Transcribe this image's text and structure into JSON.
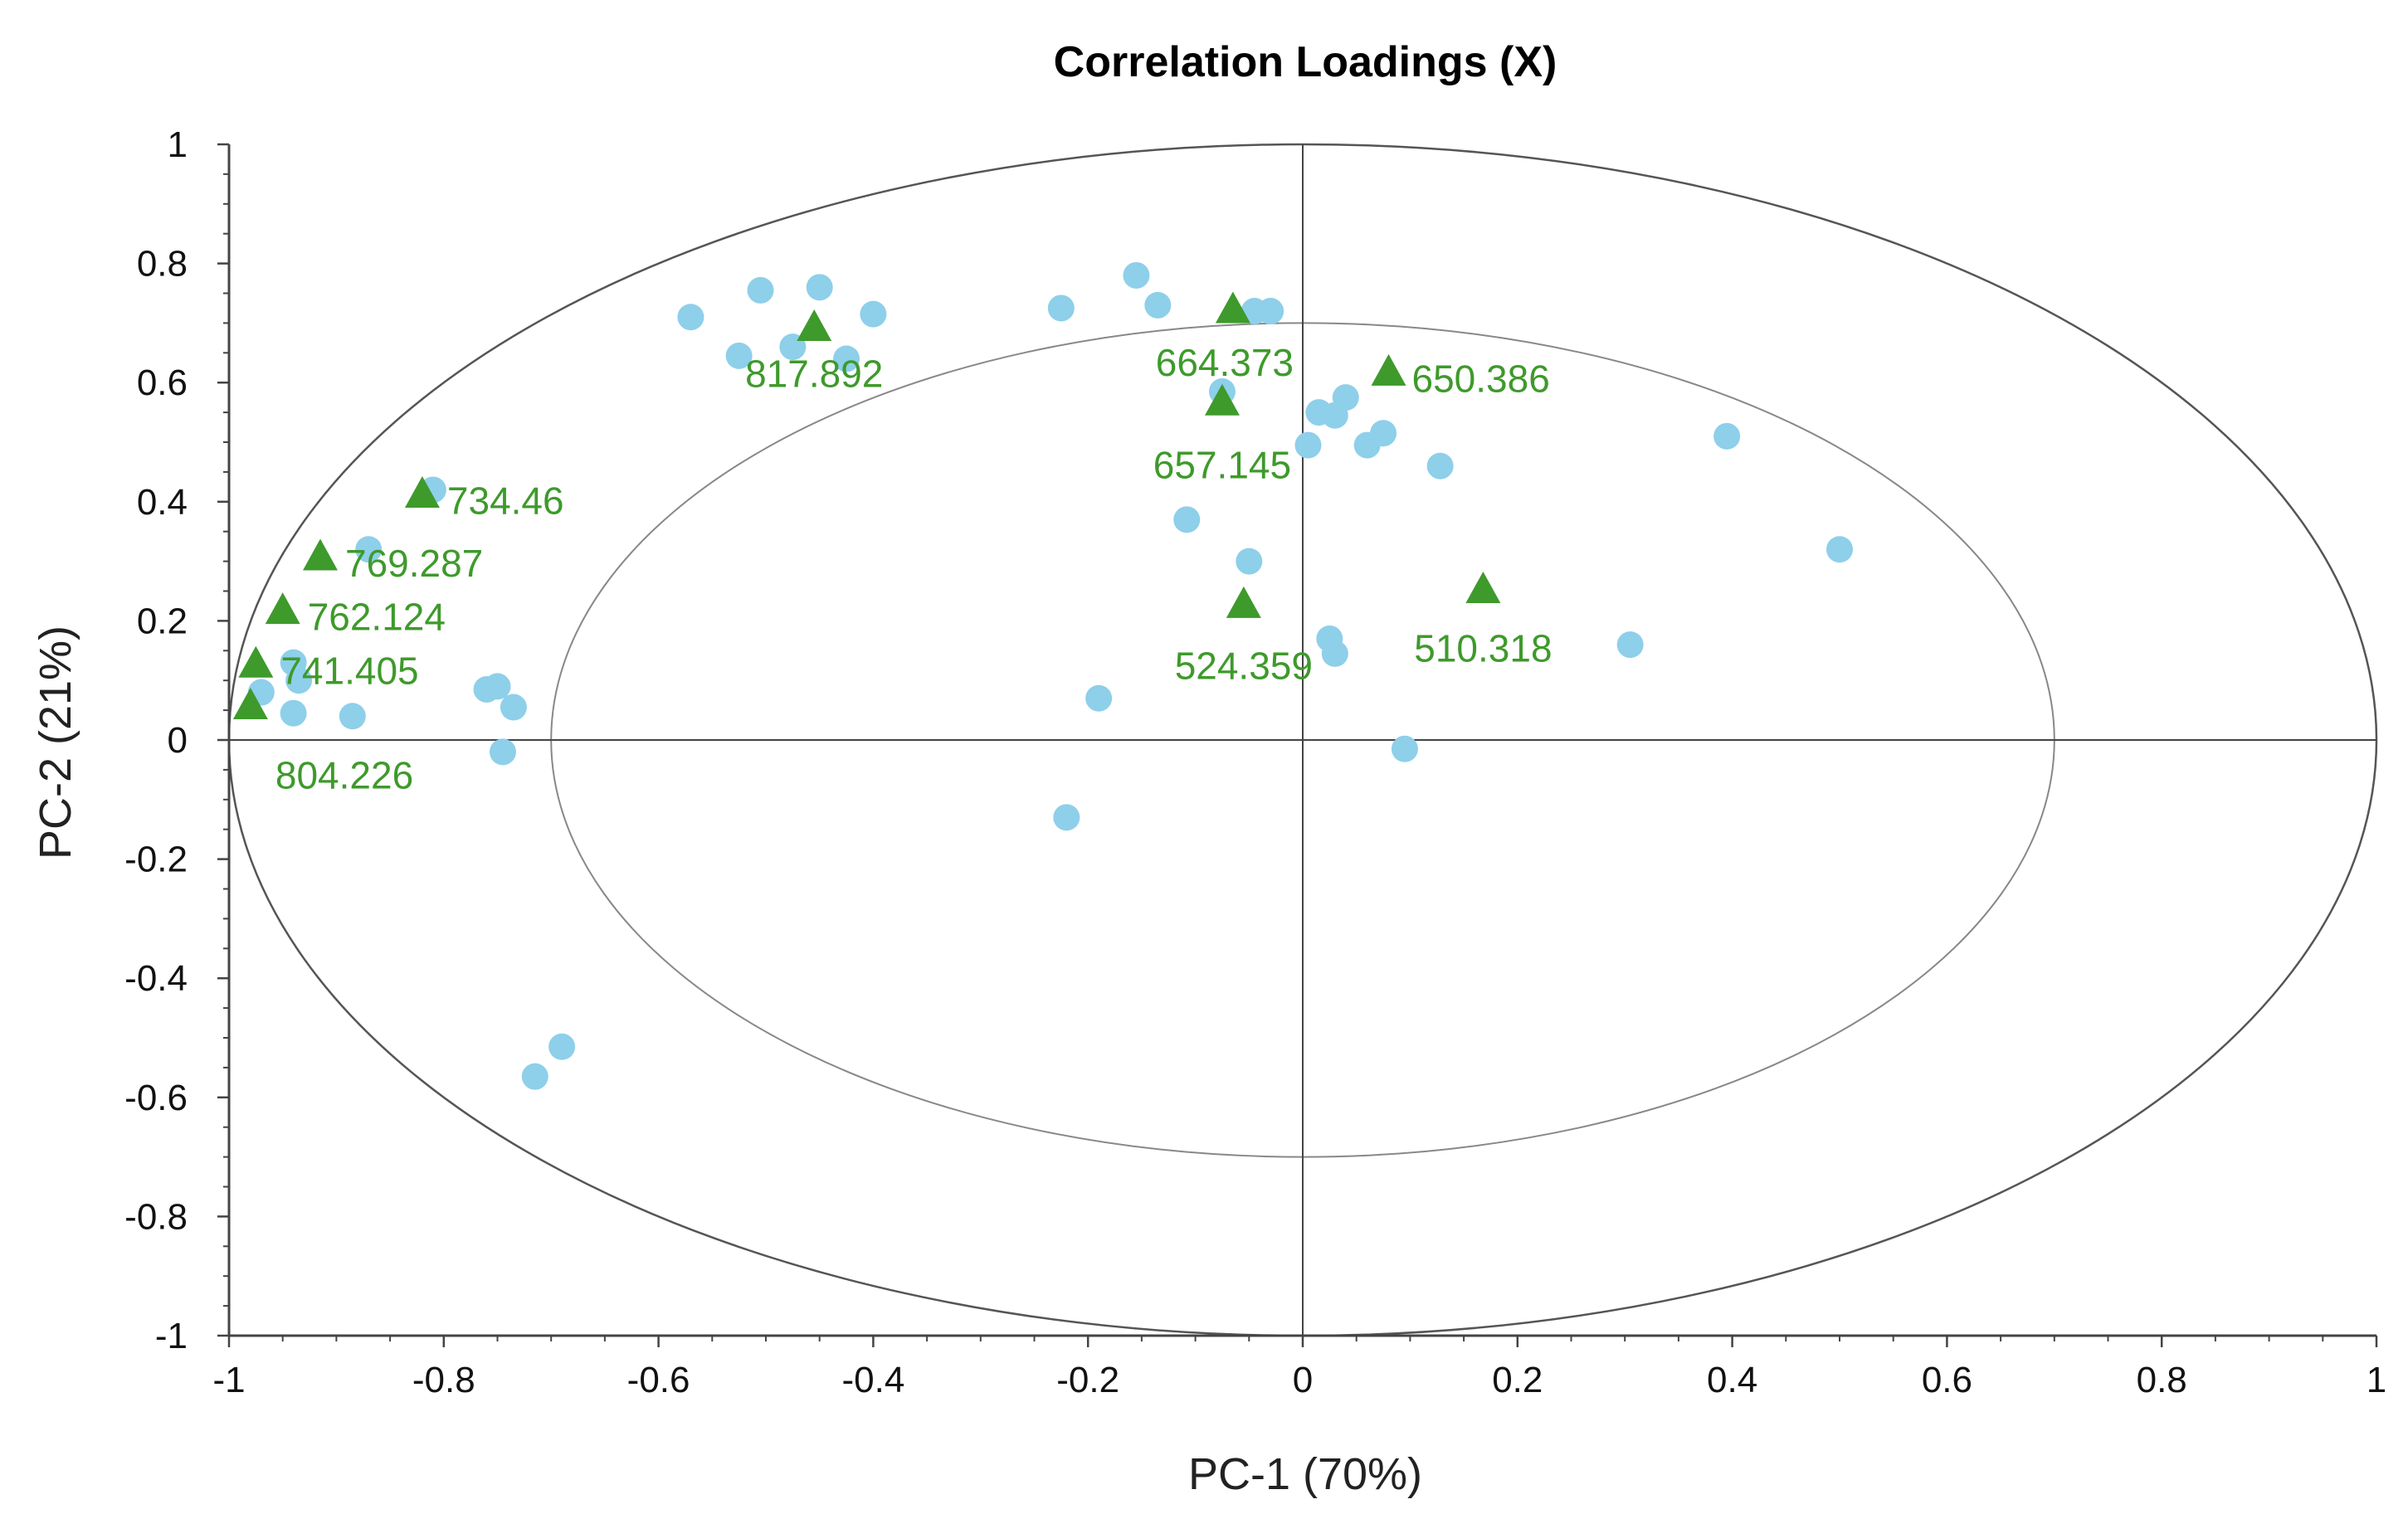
{
  "chart_data": {
    "type": "scatter",
    "title": "Correlation Loadings (X)",
    "xlabel": "PC-1 (70%)",
    "ylabel": "PC-2 (21%)",
    "xlim": [
      -1,
      1
    ],
    "ylim": [
      -1,
      1
    ],
    "x_ticks": [
      "-1",
      "-0.8",
      "-0.6",
      "-0.4",
      "-0.2",
      "0",
      "0.2",
      "0.4",
      "0.6",
      "0.8",
      "1"
    ],
    "y_ticks": [
      "1",
      "0.8",
      "0.6",
      "0.4",
      "0.2",
      "0",
      "-0.2",
      "-0.4",
      "-0.6",
      "-0.8",
      "-1"
    ],
    "ellipses": [
      {
        "radius": 1.0
      },
      {
        "radius": 0.7
      }
    ],
    "colors": {
      "circles": "#8ecfea",
      "triangles": "#3e9a2b",
      "labels": "#3e9a2b",
      "outer_ellipse": "#555555",
      "inner_ellipse": "#888888",
      "axes": "#444444"
    },
    "series": [
      {
        "marker": "circle",
        "points": [
          {
            "x": -0.57,
            "y": 0.71
          },
          {
            "x": -0.505,
            "y": 0.755
          },
          {
            "x": -0.45,
            "y": 0.76
          },
          {
            "x": -0.525,
            "y": 0.645
          },
          {
            "x": -0.475,
            "y": 0.66
          },
          {
            "x": -0.425,
            "y": 0.64
          },
          {
            "x": -0.4,
            "y": 0.715
          },
          {
            "x": -0.225,
            "y": 0.725
          },
          {
            "x": -0.155,
            "y": 0.78
          },
          {
            "x": -0.135,
            "y": 0.73
          },
          {
            "x": -0.045,
            "y": 0.72
          },
          {
            "x": -0.03,
            "y": 0.72
          },
          {
            "x": -0.075,
            "y": 0.585
          },
          {
            "x": 0.015,
            "y": 0.55
          },
          {
            "x": 0.03,
            "y": 0.545
          },
          {
            "x": 0.04,
            "y": 0.575
          },
          {
            "x": 0.005,
            "y": 0.495
          },
          {
            "x": 0.06,
            "y": 0.495
          },
          {
            "x": 0.075,
            "y": 0.515
          },
          {
            "x": 0.128,
            "y": 0.46
          },
          {
            "x": -0.108,
            "y": 0.37
          },
          {
            "x": -0.05,
            "y": 0.3
          },
          {
            "x": 0.395,
            "y": 0.51
          },
          {
            "x": 0.5,
            "y": 0.32
          },
          {
            "x": 0.305,
            "y": 0.16
          },
          {
            "x": 0.025,
            "y": 0.17
          },
          {
            "x": 0.03,
            "y": 0.145
          },
          {
            "x": -0.19,
            "y": 0.07
          },
          {
            "x": 0.095,
            "y": -0.015
          },
          {
            "x": -0.22,
            "y": -0.13
          },
          {
            "x": -0.81,
            "y": 0.42
          },
          {
            "x": -0.87,
            "y": 0.32
          },
          {
            "x": -0.94,
            "y": 0.13
          },
          {
            "x": -0.935,
            "y": 0.1
          },
          {
            "x": -0.97,
            "y": 0.08
          },
          {
            "x": -0.94,
            "y": 0.045
          },
          {
            "x": -0.885,
            "y": 0.04
          },
          {
            "x": -0.76,
            "y": 0.085
          },
          {
            "x": -0.75,
            "y": 0.09
          },
          {
            "x": -0.735,
            "y": 0.055
          },
          {
            "x": -0.745,
            "y": -0.02
          },
          {
            "x": -0.69,
            "y": -0.515
          },
          {
            "x": -0.715,
            "y": -0.565
          }
        ]
      },
      {
        "marker": "triangle",
        "points": [
          {
            "x": -0.455,
            "y": 0.69,
            "label": "817.892"
          },
          {
            "x": -0.065,
            "y": 0.72,
            "label": "664.373"
          },
          {
            "x": 0.08,
            "y": 0.615,
            "label": "650.386"
          },
          {
            "x": -0.075,
            "y": 0.565,
            "label": "657.145"
          },
          {
            "x": -0.82,
            "y": 0.41,
            "label": "734.46"
          },
          {
            "x": -0.915,
            "y": 0.305,
            "label": "769.287"
          },
          {
            "x": -0.95,
            "y": 0.215,
            "label": "762.124"
          },
          {
            "x": -0.975,
            "y": 0.125,
            "label": "741.405"
          },
          {
            "x": -0.98,
            "y": 0.055,
            "label": "804.226"
          },
          {
            "x": -0.055,
            "y": 0.225,
            "label": "524.359"
          },
          {
            "x": 0.168,
            "y": 0.25,
            "label": "510.318"
          }
        ]
      }
    ]
  }
}
